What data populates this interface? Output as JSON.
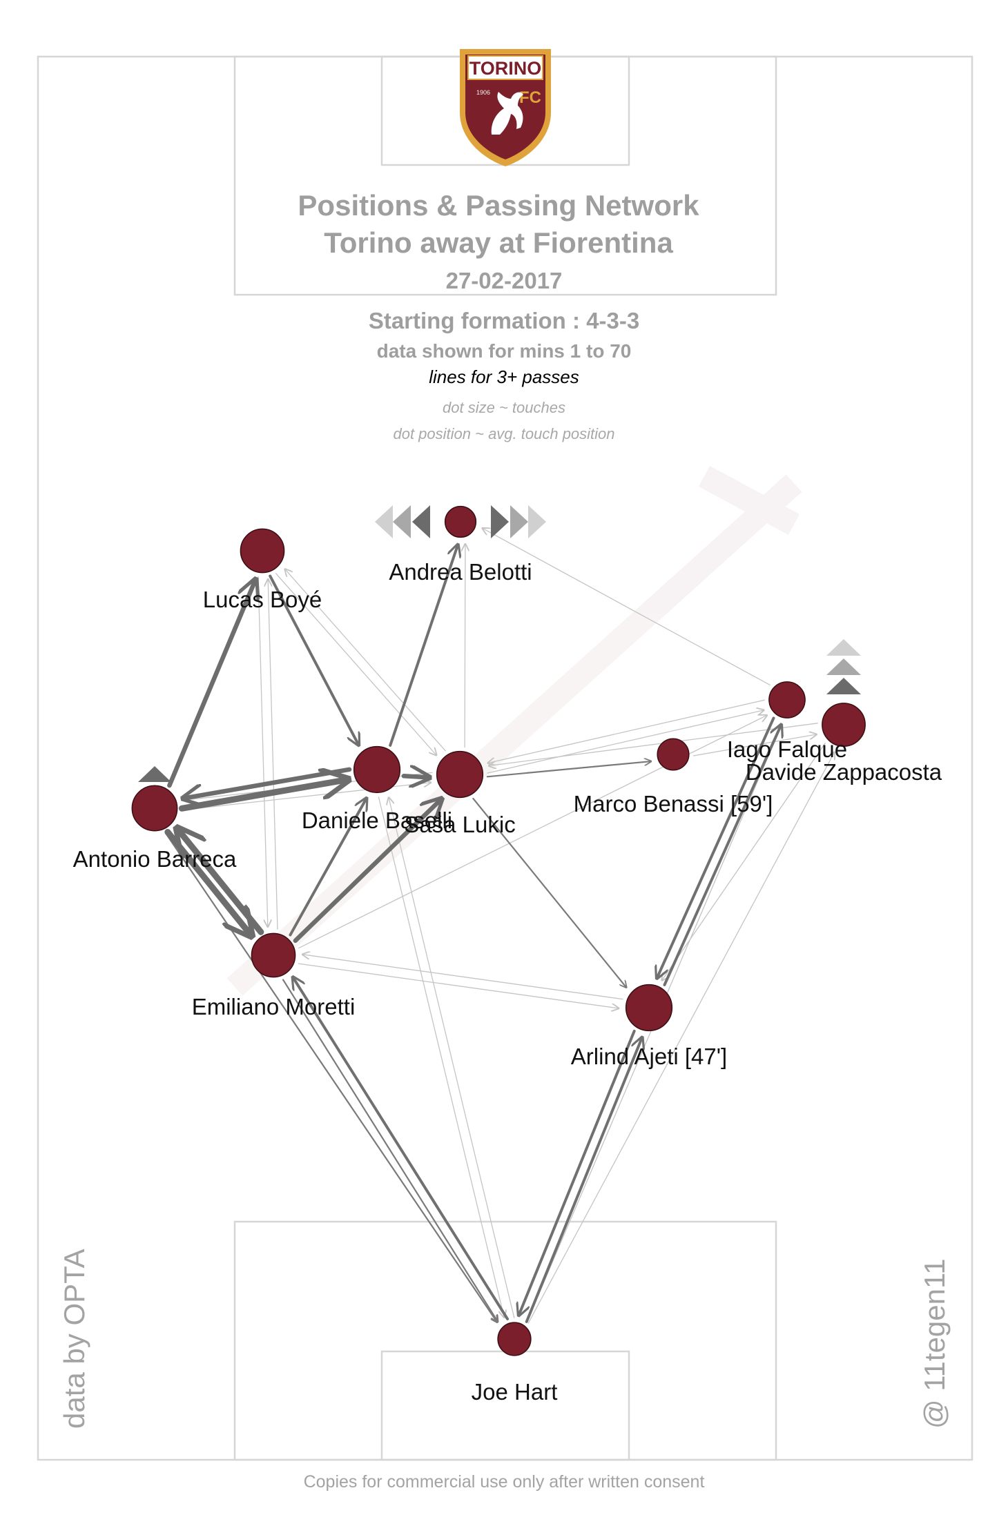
{
  "header": {
    "title": "Positions & Passing Network",
    "subtitle": "Torino  away at  Fiorentina",
    "date": "27-02-2017",
    "formation": "Starting formation : 4-3-3",
    "minutes": "data shown for mins 1 to 70",
    "lines_note": "lines for 3+ passes",
    "dot_size_note": "dot size ~ touches",
    "dot_position_note": "dot position ~ avg. touch position"
  },
  "logo": {
    "text": "TORINO",
    "year": "1906",
    "fc": "FC",
    "primary": "#7b1f2a",
    "secondary": "#e0a23a"
  },
  "credits": {
    "data_source": "data by OPTA",
    "author": "@ 11tegen11",
    "footer": "Copies for commercial use only after written consent"
  },
  "colors": {
    "node": "#7a1f2b",
    "node_stroke": "#3a0d12",
    "pitch_line": "#d6d6d6",
    "title_gray": "#9e9e9e"
  },
  "players": [
    {
      "id": "hart",
      "name": "Joe Hart",
      "size": 0.45
    },
    {
      "id": "barreca",
      "name": "Antonio Barreca",
      "size": 0.85,
      "arrows": "up"
    },
    {
      "id": "moretti",
      "name": "Emiliano Moretti",
      "size": 0.8
    },
    {
      "id": "baselli",
      "name": "Daniele Baselli",
      "size": 0.88
    },
    {
      "id": "lukic",
      "name": "Saša Lukic",
      "size": 0.88
    },
    {
      "id": "boye",
      "name": "Lucas Boyé",
      "size": 0.8
    },
    {
      "id": "belotti",
      "name": "Andrea Belotti",
      "size": 0.38,
      "arrows": "sideways"
    },
    {
      "id": "benassi",
      "name": "Marco Benassi [59']",
      "size": 0.4
    },
    {
      "id": "falque",
      "name": "Iago Falque",
      "size": 0.55
    },
    {
      "id": "zappacosta",
      "name": "Davide Zappacosta",
      "size": 0.78,
      "arrows": "up"
    },
    {
      "id": "ajeti",
      "name": "Arlind Ajeti [47']",
      "size": 0.88
    }
  ],
  "passes": [
    {
      "from": "barreca",
      "to": "moretti",
      "weight": 5
    },
    {
      "from": "moretti",
      "to": "barreca",
      "weight": 4
    },
    {
      "from": "barreca",
      "to": "baselli",
      "weight": 4
    },
    {
      "from": "baselli",
      "to": "barreca",
      "weight": 3
    },
    {
      "from": "barreca",
      "to": "boye",
      "weight": 3
    },
    {
      "from": "baselli",
      "to": "lukic",
      "weight": 3
    },
    {
      "from": "moretti",
      "to": "lukic",
      "weight": 3
    },
    {
      "from": "moretti",
      "to": "baselli",
      "weight": 2
    },
    {
      "from": "ajeti",
      "to": "hart",
      "weight": 2
    },
    {
      "from": "hart",
      "to": "ajeti",
      "weight": 2
    },
    {
      "from": "hart",
      "to": "moretti",
      "weight": 2
    },
    {
      "from": "moretti",
      "to": "hart",
      "weight": 1
    },
    {
      "from": "baselli",
      "to": "belotti",
      "weight": 2
    },
    {
      "from": "boye",
      "to": "baselli",
      "weight": 2
    },
    {
      "from": "ajeti",
      "to": "falque",
      "weight": 2
    },
    {
      "from": "falque",
      "to": "ajeti",
      "weight": 2
    },
    {
      "from": "lukic",
      "to": "benassi",
      "weight": 1
    },
    {
      "from": "lukic",
      "to": "ajeti",
      "weight": 1
    },
    {
      "from": "barreca",
      "to": "hart",
      "weight": 1
    },
    {
      "from": "zappacosta",
      "to": "lukic",
      "weight": 0
    },
    {
      "from": "falque",
      "to": "lukic",
      "weight": 0
    },
    {
      "from": "lukic",
      "to": "falque",
      "weight": 0
    },
    {
      "from": "falque",
      "to": "belotti",
      "weight": 0
    },
    {
      "from": "lukic",
      "to": "belotti",
      "weight": 0
    },
    {
      "from": "lukic",
      "to": "boye",
      "weight": 0
    },
    {
      "from": "boye",
      "to": "lukic",
      "weight": 0
    },
    {
      "from": "boye",
      "to": "moretti",
      "weight": 0
    },
    {
      "from": "moretti",
      "to": "boye",
      "weight": 0
    },
    {
      "from": "lukic",
      "to": "barreca",
      "weight": 0
    },
    {
      "from": "moretti",
      "to": "ajeti",
      "weight": 0
    },
    {
      "from": "ajeti",
      "to": "moretti",
      "weight": 0
    },
    {
      "from": "hart",
      "to": "baselli",
      "weight": 0
    },
    {
      "from": "baselli",
      "to": "hart",
      "weight": 0
    },
    {
      "from": "hart",
      "to": "falque",
      "weight": 0
    },
    {
      "from": "zappacosta",
      "to": "ajeti",
      "weight": 0
    },
    {
      "from": "hart",
      "to": "zappacosta",
      "weight": 0
    },
    {
      "from": "benassi",
      "to": "zappacosta",
      "weight": 0
    },
    {
      "from": "moretti",
      "to": "falque",
      "weight": 0
    },
    {
      "from": "barreca",
      "to": "lukic",
      "weight": 0
    }
  ]
}
